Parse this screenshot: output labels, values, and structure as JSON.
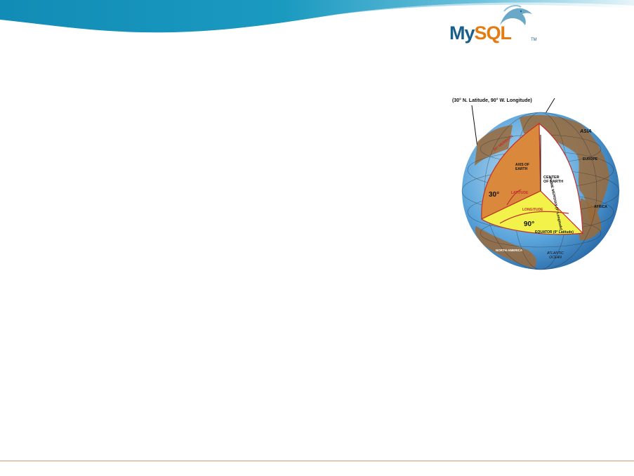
{
  "logo": {
    "my": "My",
    "sql": "SQL",
    "tm": "TM"
  },
  "figure": {
    "top_caption": "(30° N. Latitude, 90° W. Longitude)",
    "labels": {
      "axis": "AXIS OF EARTH",
      "center": "CENTER OF EARTH",
      "latitude": "LATITUDE",
      "longitude": "LONGITUDE",
      "lat_deg": "30°",
      "lon_deg": "90°",
      "equator": "EQUATOR (0° Latitude)",
      "prime_meridian": "PRIME MERIDIAN (0° Longitude)",
      "meridian": "90° MERIDIAN",
      "north_america": "NORTH AMERICA",
      "atlantic": "ATLANTIC OCEAN",
      "asia": "ASIA",
      "europe": "EUROPE",
      "africa": "AFRICA"
    }
  },
  "colors": {
    "wave_dark": "#1590b8",
    "wave_light": "#a9d7e8",
    "ocean": "#3d8fd0",
    "land": "#9a6a3a",
    "wedge_orange": "#d9883c",
    "wedge_yellow": "#f2f24a",
    "footer_rule": "#d89a6a"
  }
}
